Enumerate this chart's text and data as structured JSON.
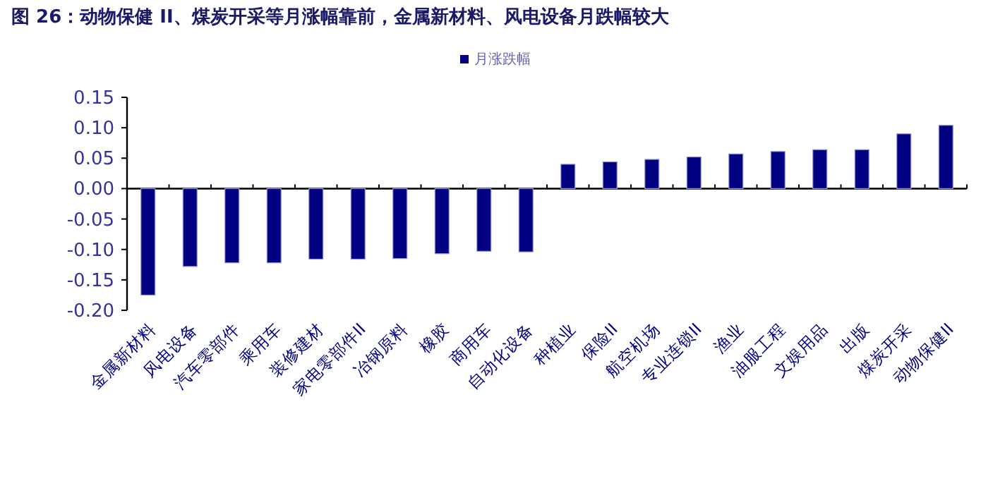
{
  "chart_data": {
    "type": "bar",
    "title": "图 26：动物保健 II、煤炭开采等月涨幅靠前，金属新材料、风电设备月跌幅较大",
    "categories": [
      "金属新材料",
      "风电设备",
      "汽车零部件",
      "乘用车",
      "装修建材",
      "家电零部件II",
      "冶钢原料",
      "橡胶",
      "商用车",
      "自动化设备",
      "种植业",
      "保险II",
      "航空机场",
      "专业连锁II",
      "渔业",
      "油服工程",
      "文娱用品",
      "出版",
      "煤炭开采",
      "动物保健II"
    ],
    "series": [
      {
        "name": "月涨跌幅",
        "color": "#000080",
        "values": [
          -0.175,
          -0.128,
          -0.122,
          -0.122,
          -0.116,
          -0.116,
          -0.115,
          -0.107,
          -0.103,
          -0.104,
          0.04,
          0.044,
          0.048,
          0.052,
          0.057,
          0.061,
          0.064,
          0.064,
          0.09,
          0.104
        ]
      }
    ],
    "ylim": [
      -0.2,
      0.15
    ],
    "yticks": [
      {
        "value": 0.15,
        "label": "0.15"
      },
      {
        "value": 0.1,
        "label": "0.10"
      },
      {
        "value": 0.05,
        "label": "0.05"
      },
      {
        "value": 0,
        "label": "0.00"
      },
      {
        "value": -0.05,
        "label": "-0.05"
      },
      {
        "value": -0.1,
        "label": "-0.10"
      },
      {
        "value": -0.15,
        "label": "-0.15"
      },
      {
        "value": -0.2,
        "label": "-0.20"
      }
    ],
    "legend": "top"
  }
}
